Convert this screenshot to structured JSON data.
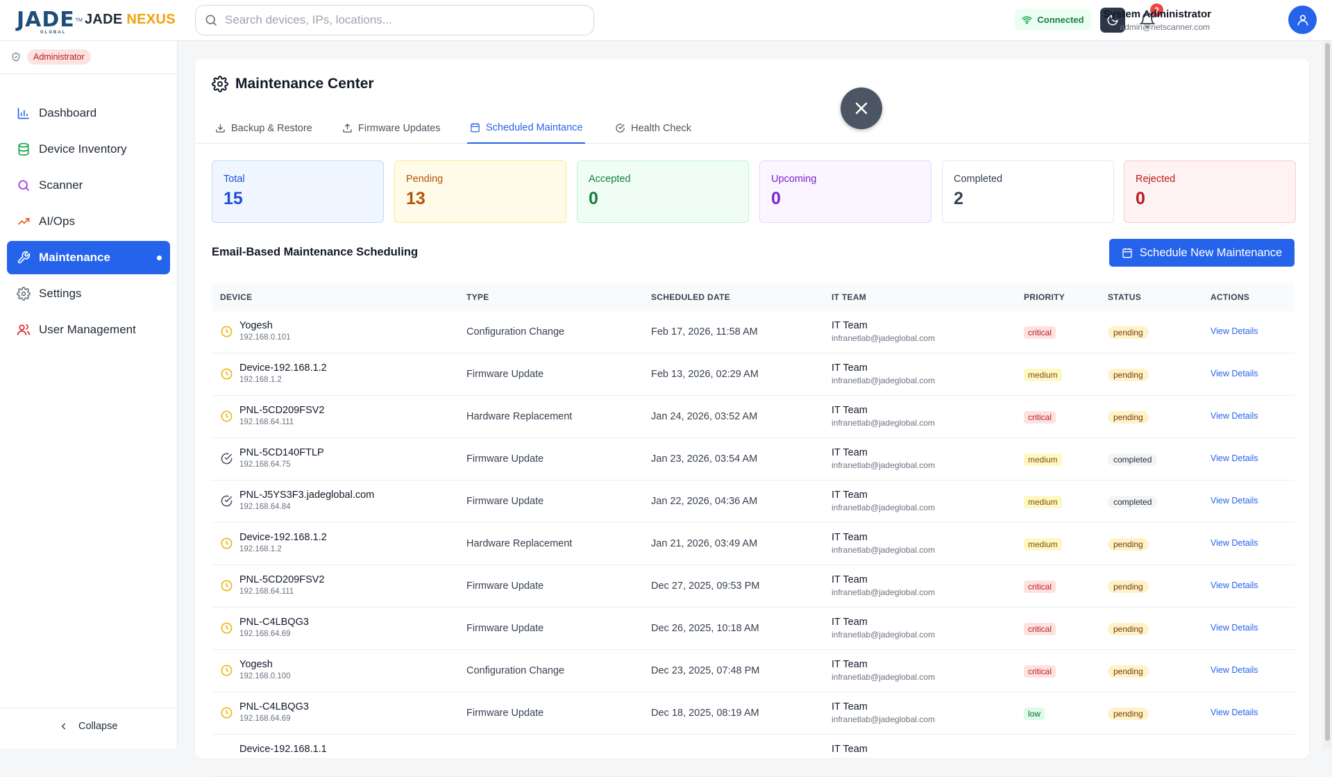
{
  "header": {
    "logo_text": "JADE",
    "logo_sub": "GLOBAL",
    "logo_tm": "TM",
    "brand_jade": "JADE",
    "brand_nexus": "NEXUS",
    "search_placeholder": "Search devices, IPs, locations...",
    "connection_status": "Connected",
    "notification_count": "2",
    "user_name": "System Administrator",
    "user_email": "admin@netscanner.com"
  },
  "sidebar": {
    "role": "Administrator",
    "items": [
      {
        "label": "Dashboard",
        "icon": "bar-chart-icon",
        "active": false
      },
      {
        "label": "Device Inventory",
        "icon": "database-icon",
        "active": false
      },
      {
        "label": "Scanner",
        "icon": "search-icon",
        "active": false
      },
      {
        "label": "AI/Ops",
        "icon": "trending-up-icon",
        "active": false
      },
      {
        "label": "Maintenance",
        "icon": "wrench-icon",
        "active": true
      },
      {
        "label": "Settings",
        "icon": "gear-icon",
        "active": false
      },
      {
        "label": "User Management",
        "icon": "users-icon",
        "active": false
      }
    ],
    "collapse_label": "Collapse"
  },
  "main": {
    "title": "Maintenance Center",
    "tabs": [
      {
        "label": "Backup & Restore",
        "icon": "download-icon",
        "active": false
      },
      {
        "label": "Firmware Updates",
        "icon": "upload-icon",
        "active": false
      },
      {
        "label": "Scheduled Maintance",
        "icon": "calendar-icon",
        "active": true
      },
      {
        "label": "Health Check",
        "icon": "check-circle-icon",
        "active": false
      }
    ],
    "stats": [
      {
        "label": "Total",
        "value": "15",
        "color": "#1d4ed8"
      },
      {
        "label": "Pending",
        "value": "13",
        "color": "#b45309"
      },
      {
        "label": "Accepted",
        "value": "0",
        "color": "#15803d"
      },
      {
        "label": "Upcoming",
        "value": "0",
        "color": "#7e22ce"
      },
      {
        "label": "Completed",
        "value": "2",
        "color": "#374151"
      },
      {
        "label": "Rejected",
        "value": "0",
        "color": "#b91c1c"
      }
    ],
    "section_title": "Email-Based Maintenance Scheduling",
    "schedule_button": "Schedule New Maintenance",
    "table": {
      "columns": [
        "DEVICE",
        "TYPE",
        "SCHEDULED DATE",
        "IT TEAM",
        "PRIORITY",
        "STATUS",
        "ACTIONS"
      ],
      "rows": [
        {
          "device": "Yogesh",
          "ip": "192.168.0.101",
          "type": "Configuration Change",
          "date": "Feb 17, 2026, 11:58 AM",
          "team": "IT Team",
          "email": "infranetlab@jadeglobal.com",
          "priority": "critical",
          "status": "pending",
          "action": "View Details"
        },
        {
          "device": "Device-192.168.1.2",
          "ip": "192.168.1.2",
          "type": "Firmware Update",
          "date": "Feb 13, 2026, 02:29 AM",
          "team": "IT Team",
          "email": "infranetlab@jadeglobal.com",
          "priority": "medium",
          "status": "pending",
          "action": "View Details"
        },
        {
          "device": "PNL-5CD209FSV2",
          "ip": "192.168.64.111",
          "type": "Hardware Replacement",
          "date": "Jan 24, 2026, 03:52 AM",
          "team": "IT Team",
          "email": "infranetlab@jadeglobal.com",
          "priority": "critical",
          "status": "pending",
          "action": "View Details"
        },
        {
          "device": "PNL-5CD140FTLP",
          "ip": "192.168.64.75",
          "type": "Firmware Update",
          "date": "Jan 23, 2026, 03:54 AM",
          "team": "IT Team",
          "email": "infranetlab@jadeglobal.com",
          "priority": "medium",
          "status": "completed",
          "action": "View Details"
        },
        {
          "device": "PNL-J5YS3F3.jadeglobal.com",
          "ip": "192.168.64.84",
          "type": "Firmware Update",
          "date": "Jan 22, 2026, 04:36 AM",
          "team": "IT Team",
          "email": "infranetlab@jadeglobal.com",
          "priority": "medium",
          "status": "completed",
          "action": "View Details"
        },
        {
          "device": "Device-192.168.1.2",
          "ip": "192.168.1.2",
          "type": "Hardware Replacement",
          "date": "Jan 21, 2026, 03:49 AM",
          "team": "IT Team",
          "email": "infranetlab@jadeglobal.com",
          "priority": "medium",
          "status": "pending",
          "action": "View Details"
        },
        {
          "device": "PNL-5CD209FSV2",
          "ip": "192.168.64.111",
          "type": "Firmware Update",
          "date": "Dec 27, 2025, 09:53 PM",
          "team": "IT Team",
          "email": "infranetlab@jadeglobal.com",
          "priority": "critical",
          "status": "pending",
          "action": "View Details"
        },
        {
          "device": "PNL-C4LBQG3",
          "ip": "192.168.64.69",
          "type": "Firmware Update",
          "date": "Dec 26, 2025, 10:18 AM",
          "team": "IT Team",
          "email": "infranetlab@jadeglobal.com",
          "priority": "critical",
          "status": "pending",
          "action": "View Details"
        },
        {
          "device": "Yogesh",
          "ip": "192.168.0.100",
          "type": "Configuration Change",
          "date": "Dec 23, 2025, 07:48 PM",
          "team": "IT Team",
          "email": "infranetlab@jadeglobal.com",
          "priority": "critical",
          "status": "pending",
          "action": "View Details"
        },
        {
          "device": "PNL-C4LBQG3",
          "ip": "192.168.64.69",
          "type": "Firmware Update",
          "date": "Dec 18, 2025, 08:19 AM",
          "team": "IT Team",
          "email": "infranetlab@jadeglobal.com",
          "priority": "low",
          "status": "pending",
          "action": "View Details"
        },
        {
          "device": "Device-192.168.1.1",
          "ip": "",
          "type": "",
          "date": "",
          "team": "IT Team",
          "email": "",
          "priority": "",
          "status": "",
          "action": ""
        }
      ]
    }
  }
}
